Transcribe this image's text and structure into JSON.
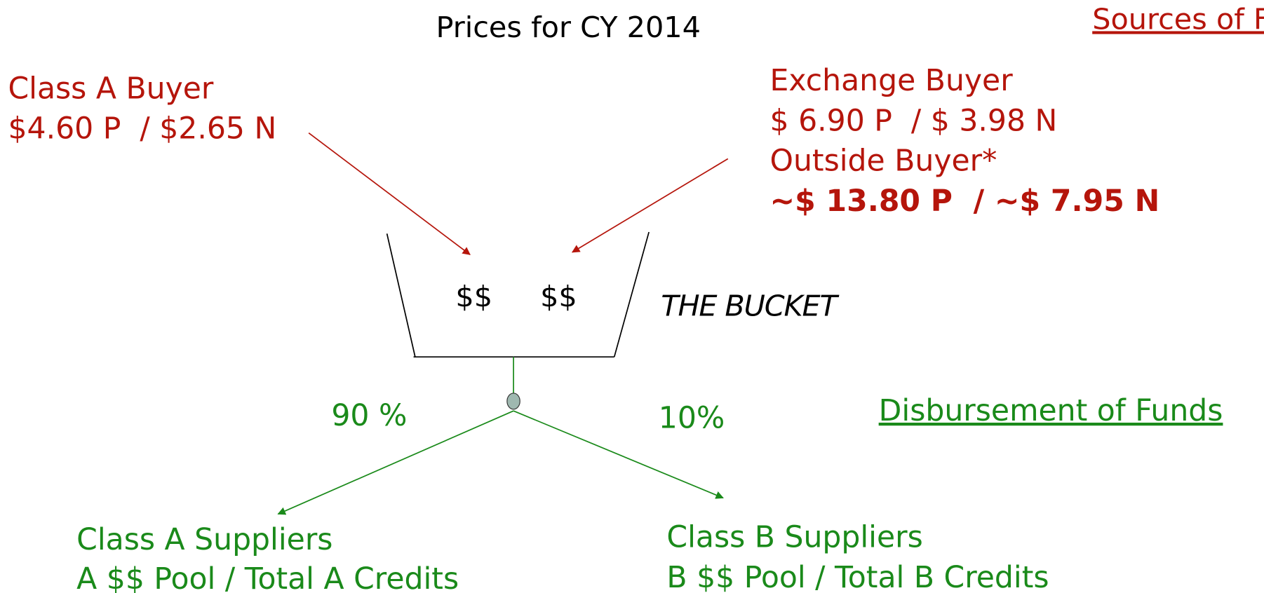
{
  "header": {
    "title": "Prices for CY 2014"
  },
  "sources": {
    "heading": "Sources of Funds",
    "class_a_buyer": {
      "label": "Class A Buyer",
      "price": "$4.60 P  / $2.65 N"
    },
    "exchange_buyer": {
      "label": "Exchange Buyer",
      "price": "$ 6.90 P  / $ 3.98 N"
    },
    "outside_buyer": {
      "label": "Outside Buyer*",
      "price": "~$ 13.80 P  / ~$ 7.95 N"
    }
  },
  "bucket": {
    "left": "$$",
    "right": "$$",
    "label": "THE BUCKET"
  },
  "disbursement": {
    "heading": "Disbursement of Funds",
    "left_share": "90 %",
    "right_share": "10%",
    "class_a": {
      "label": "Class A Suppliers",
      "formula": "A $$ Pool / Total A Credits"
    },
    "class_b": {
      "label": "Class B Suppliers",
      "formula": "B $$ Pool / Total B Credits"
    }
  }
}
